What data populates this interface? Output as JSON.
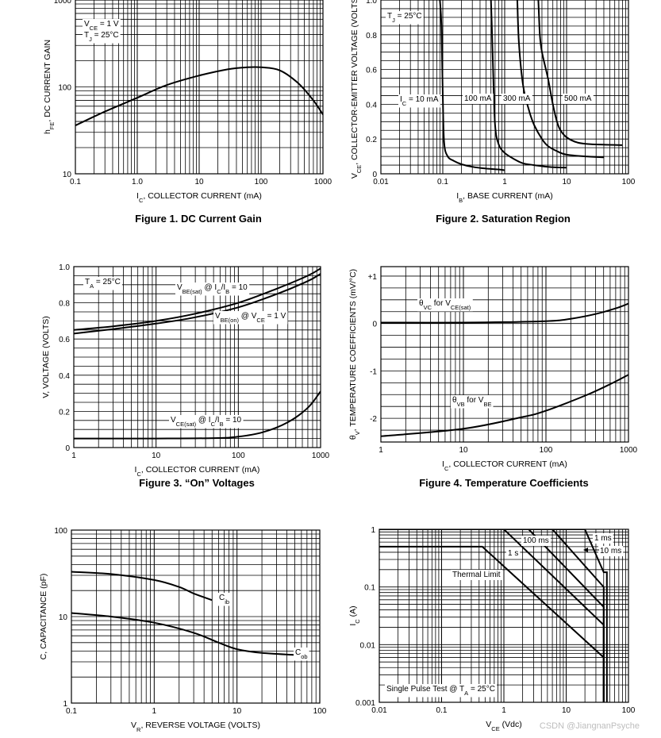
{
  "watermark": "CSDN @JiangnanPsyche",
  "chart_data": [
    {
      "id": "fig1",
      "type": "line",
      "title": "Figure 1. DC Current Gain",
      "xlabel_main": "I",
      "xlabel_sub": "C",
      "xlabel_rest": ", COLLECTOR CURRENT (mA)",
      "ylabel_main": "h",
      "ylabel_sub": "FE",
      "ylabel_rest": ", DC CURRENT GAIN",
      "xscale": "log",
      "yscale": "log",
      "xlim": [
        0.1,
        1000
      ],
      "ylim": [
        10,
        1000
      ],
      "xticks": [
        0.1,
        1.0,
        10,
        100,
        1000
      ],
      "xtick_labels": [
        "0.1",
        "1.0",
        "10",
        "100",
        "1000"
      ],
      "yticks": [
        10,
        100,
        1000
      ],
      "ytick_labels": [
        "10",
        "100",
        "1000"
      ],
      "annotations": [
        {
          "main": "V",
          "sub": "CE",
          "rest": " = 1 V",
          "pos": "top-left"
        },
        {
          "main": "T",
          "sub": "J",
          "rest": " = 25°C",
          "pos": "top-left"
        }
      ],
      "series": [
        {
          "name": "hFE",
          "x": [
            0.1,
            0.3,
            1,
            3,
            10,
            30,
            60,
            100,
            200,
            400,
            700,
            1000
          ],
          "y": [
            36,
            52,
            75,
            105,
            135,
            160,
            168,
            168,
            155,
            110,
            70,
            48
          ]
        }
      ]
    },
    {
      "id": "fig2",
      "type": "line",
      "title": "Figure 2. Saturation Region",
      "xlabel_main": "I",
      "xlabel_sub": "B",
      "xlabel_rest": ", BASE CURRENT (mA)",
      "ylabel_main": "V",
      "ylabel_sub": "CE",
      "ylabel_rest": ", COLLECTOR-EMITTER VOLTAGE (VOLTS)",
      "xscale": "log",
      "yscale": "linear",
      "xlim": [
        0.01,
        100
      ],
      "ylim": [
        0,
        1.0
      ],
      "xticks": [
        0.01,
        0.1,
        1,
        10,
        100
      ],
      "xtick_labels": [
        "0.01",
        "0.1",
        "1",
        "10",
        "100"
      ],
      "yticks": [
        0,
        0.2,
        0.4,
        0.6,
        0.8,
        1.0
      ],
      "ytick_labels": [
        "0",
        "0.2",
        "0.4",
        "0.6",
        "0.8",
        "1.0"
      ],
      "annotations": [
        {
          "main": "T",
          "sub": "J",
          "rest": " = 25°C",
          "pos": "top-left"
        }
      ],
      "series_labels": [
        {
          "main": "I",
          "sub": "C",
          "rest": " = 10 mA"
        },
        {
          "main": "",
          "sub": "",
          "rest": "100 mA"
        },
        {
          "main": "",
          "sub": "",
          "rest": "300 mA"
        },
        {
          "main": "",
          "sub": "",
          "rest": "500 mA"
        }
      ],
      "series": [
        {
          "name": "IC = 10 mA",
          "x": [
            0.09,
            0.095,
            0.1,
            0.105,
            0.12,
            0.15,
            0.2,
            0.3,
            0.5,
            0.8,
            1.0
          ],
          "y": [
            1.0,
            0.85,
            0.45,
            0.18,
            0.1,
            0.075,
            0.055,
            0.04,
            0.03,
            0.025,
            0.02
          ]
        },
        {
          "name": "100 mA",
          "x": [
            0.6,
            0.62,
            0.65,
            0.7,
            0.8,
            1.0,
            1.5,
            2,
            3,
            5,
            10
          ],
          "y": [
            1.0,
            0.85,
            0.6,
            0.28,
            0.17,
            0.12,
            0.08,
            0.06,
            0.05,
            0.04,
            0.035
          ]
        },
        {
          "name": "300 mA",
          "x": [
            1.6,
            1.7,
            2.0,
            2.5,
            3.0,
            4,
            5,
            7,
            10,
            20,
            40
          ],
          "y": [
            1.0,
            0.75,
            0.5,
            0.36,
            0.28,
            0.2,
            0.16,
            0.13,
            0.11,
            0.1,
            0.095
          ]
        },
        {
          "name": "500 mA",
          "x": [
            3.5,
            3.7,
            4.0,
            5,
            6,
            7,
            8,
            10,
            15,
            25,
            80
          ],
          "y": [
            1.0,
            0.8,
            0.7,
            0.55,
            0.4,
            0.3,
            0.25,
            0.21,
            0.18,
            0.17,
            0.165
          ]
        }
      ]
    },
    {
      "id": "fig3",
      "type": "line",
      "title": "Figure 3. “On” Voltages",
      "xlabel_main": "I",
      "xlabel_sub": "C",
      "xlabel_rest": ", COLLECTOR CURRENT (mA)",
      "ylabel_main": "V, VOLTAGE (VOLTS)",
      "ylabel_sub": "",
      "ylabel_rest": "",
      "xscale": "log",
      "yscale": "linear",
      "xlim": [
        1,
        1000
      ],
      "ylim": [
        0,
        1.0
      ],
      "xticks": [
        1,
        10,
        100,
        1000
      ],
      "xtick_labels": [
        "1",
        "10",
        "100",
        "1000"
      ],
      "yticks": [
        0,
        0.2,
        0.4,
        0.6,
        0.8,
        1.0
      ],
      "ytick_labels": [
        "0",
        "0.2",
        "0.4",
        "0.6",
        "0.8",
        "1.0"
      ],
      "annotations": [
        {
          "main": "T",
          "sub": "A",
          "rest": " = 25°C",
          "pos": "top-left"
        }
      ],
      "series_labels": [
        {
          "text": "V",
          "sub": "BE(sat)",
          "rest": " @ I",
          "sub2": "C",
          "rest2": "/I",
          "sub3": "B",
          "rest3": " = 10"
        },
        {
          "text": "V",
          "sub": "BE(on)",
          "rest": " @ V",
          "sub2": "CE",
          "rest2": " = 1 V",
          "sub3": "",
          "rest3": ""
        },
        {
          "text": "V",
          "sub": "CE(sat)",
          "rest": " @ I",
          "sub2": "C",
          "rest2": "/I",
          "sub3": "B",
          "rest3": " = 10"
        }
      ],
      "series": [
        {
          "name": "VBE(sat)",
          "x": [
            1,
            3,
            10,
            30,
            100,
            300,
            700,
            1000
          ],
          "y": [
            0.65,
            0.67,
            0.7,
            0.74,
            0.8,
            0.88,
            0.95,
            0.99
          ]
        },
        {
          "name": "VBE(on)",
          "x": [
            1,
            3,
            10,
            30,
            100,
            300,
            700,
            1000
          ],
          "y": [
            0.63,
            0.655,
            0.685,
            0.72,
            0.775,
            0.85,
            0.92,
            0.96
          ]
        },
        {
          "name": "VCE(sat)",
          "x": [
            1,
            10,
            50,
            100,
            200,
            400,
            700,
            1000
          ],
          "y": [
            0.05,
            0.05,
            0.052,
            0.06,
            0.085,
            0.14,
            0.22,
            0.31
          ]
        }
      ]
    },
    {
      "id": "fig4",
      "type": "line",
      "title": "Figure 4. Temperature Coefficients",
      "xlabel_main": "I",
      "xlabel_sub": "C",
      "xlabel_rest": ", COLLECTOR CURRENT (mA)",
      "ylabel_main": "θ",
      "ylabel_sub": "V",
      "ylabel_rest": ", TEMPERATURE COEFFICIENTS (mV/°C)",
      "xscale": "log",
      "yscale": "linear",
      "xlim": [
        1,
        1000
      ],
      "ylim": [
        -2.5,
        1.2
      ],
      "xticks": [
        1,
        10,
        100,
        1000
      ],
      "xtick_labels": [
        "1",
        "10",
        "100",
        "1000"
      ],
      "yticks": [
        1,
        0,
        -1,
        -2
      ],
      "ytick_labels": [
        "+1",
        "0",
        "-1",
        "-2"
      ],
      "series_labels": [
        {
          "main": "θ",
          "sub": "VC",
          "rest": " for V",
          "sub2": "CE(sat)"
        },
        {
          "main": "θ",
          "sub": "VB",
          "rest": " for V",
          "sub2": "BE"
        }
      ],
      "series": [
        {
          "name": "θVC for VCE(sat)",
          "x": [
            1,
            10,
            100,
            200,
            400,
            700,
            1000
          ],
          "y": [
            0.02,
            0.02,
            0.05,
            0.1,
            0.2,
            0.32,
            0.42
          ]
        },
        {
          "name": "θVB for VBE",
          "x": [
            1,
            10,
            50,
            100,
            300,
            600,
            1000
          ],
          "y": [
            -2.38,
            -2.22,
            -1.98,
            -1.84,
            -1.52,
            -1.28,
            -1.08
          ]
        }
      ]
    },
    {
      "id": "fig5",
      "type": "line",
      "title": "",
      "xlabel_main": "V",
      "xlabel_sub": "R",
      "xlabel_rest": ", REVERSE VOLTAGE (VOLTS)",
      "ylabel_main": "C, CAPACITANCE (pF)",
      "ylabel_sub": "",
      "ylabel_rest": "",
      "xscale": "log",
      "yscale": "log",
      "xlim": [
        0.1,
        100
      ],
      "ylim": [
        1,
        100
      ],
      "xticks": [
        0.1,
        1,
        10,
        100
      ],
      "xtick_labels": [
        "0.1",
        "1",
        "10",
        "100"
      ],
      "yticks": [
        1,
        10,
        100
      ],
      "ytick_labels": [
        "1",
        "10",
        "100"
      ],
      "series_labels": [
        {
          "main": "C",
          "sub": "ib",
          "rest": ""
        },
        {
          "main": "C",
          "sub": "ob",
          "rest": ""
        }
      ],
      "series": [
        {
          "name": "Cib",
          "x": [
            0.1,
            0.3,
            1,
            2,
            3,
            5
          ],
          "y": [
            33,
            31,
            26.5,
            22,
            18.5,
            15.5
          ]
        },
        {
          "name": "Cob",
          "x": [
            0.1,
            0.3,
            1,
            3,
            6,
            10,
            20,
            50
          ],
          "y": [
            11,
            10,
            8.5,
            6.5,
            5,
            4.2,
            3.8,
            3.6
          ]
        }
      ]
    },
    {
      "id": "fig6",
      "type": "line",
      "title": "",
      "xlabel_main": "V",
      "xlabel_sub": "CE",
      "xlabel_rest": " (Vdc)",
      "ylabel_main": "I",
      "ylabel_sub": "C",
      "ylabel_rest": " (A)",
      "xscale": "log",
      "yscale": "log",
      "xlim": [
        0.01,
        100
      ],
      "ylim": [
        0.001,
        1
      ],
      "xticks": [
        0.01,
        0.1,
        1,
        10,
        100
      ],
      "xtick_labels": [
        "0.01",
        "0.1",
        "1",
        "10",
        "100"
      ],
      "yticks": [
        0.001,
        0.01,
        0.1,
        1
      ],
      "ytick_labels": [
        "0.001",
        "0.01",
        "0.1",
        "1"
      ],
      "annotations": [
        {
          "text": "Single Pulse Test @ T",
          "sub": "A",
          "rest": " = 25°C",
          "pos": "bottom-left"
        }
      ],
      "series_labels": [
        {
          "text": "1 ms"
        },
        {
          "text": "10 ms"
        },
        {
          "text": "100 ms"
        },
        {
          "text": "1 s"
        },
        {
          "text": "Thermal Limit"
        }
      ],
      "series": [
        {
          "name": "1 ms",
          "x": [
            0.01,
            20,
            40,
            45,
            45
          ],
          "y": [
            1,
            1,
            0.18,
            0.18,
            0.001
          ]
        },
        {
          "name": "10 ms",
          "x": [
            0.01,
            6,
            40,
            40
          ],
          "y": [
            1,
            1,
            0.1,
            0.001
          ]
        },
        {
          "name": "100 ms",
          "x": [
            0.01,
            2.5,
            40,
            40
          ],
          "y": [
            1,
            1,
            0.045,
            0.001
          ]
        },
        {
          "name": "1 s",
          "x": [
            0.01,
            1.0,
            40,
            40
          ],
          "y": [
            1,
            1,
            0.022,
            0.001
          ]
        },
        {
          "name": "Thermal Limit",
          "x": [
            0.01,
            0.45,
            40,
            40
          ],
          "y": [
            0.5,
            0.5,
            0.006,
            0.001
          ]
        }
      ]
    }
  ]
}
